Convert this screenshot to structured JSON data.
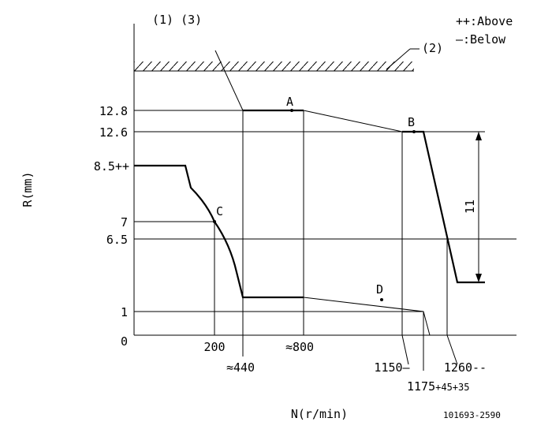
{
  "annotations": {
    "note_top": "(1) (3)",
    "legend_above": "++:Above",
    "legend_below": "—:Below",
    "ref_2": "(2)",
    "span": "11",
    "drawing_no": "101693-2590"
  },
  "y_axis": {
    "title": "R(mm)",
    "labels": [
      "12.8",
      "12.6",
      "8.5++",
      "7",
      "6.5",
      "1",
      "0"
    ]
  },
  "x_axis": {
    "title": "N(r/min)",
    "labels": [
      "200",
      "≈440",
      "≈800",
      "1150—",
      "1260--"
    ],
    "special": {
      "base": "1175",
      "tolerance": "+45+35"
    }
  },
  "points": [
    "A",
    "B",
    "C",
    "D"
  ]
}
